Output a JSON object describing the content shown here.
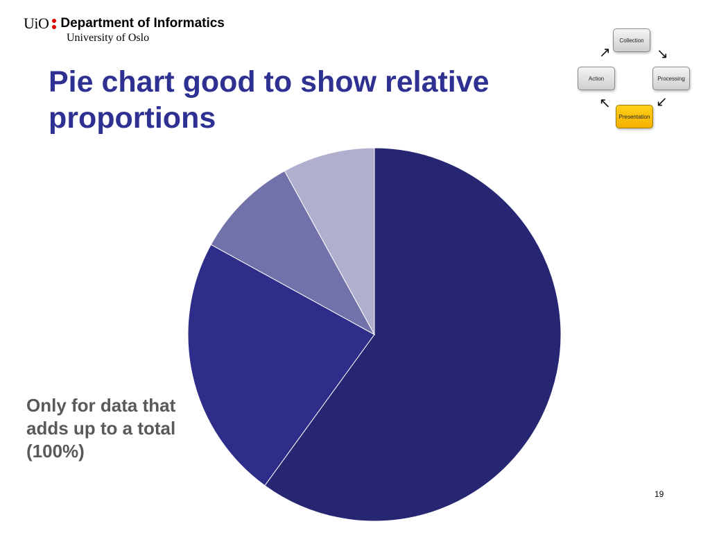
{
  "header": {
    "logo_text": "UiO",
    "department": "Department of Informatics",
    "university": "University of Oslo",
    "logo_dot_color": "#dd0000"
  },
  "slide": {
    "title": "Pie chart good to show relative proportions",
    "caption": "Only for data that adds up to a total (100%)",
    "page_number": "19"
  },
  "cycle_diagram": {
    "nodes": {
      "collection": "Collection",
      "processing": "Processing",
      "presentation": "Presentation",
      "action": "Action"
    },
    "active_node": "presentation",
    "active_color": "#ffc000"
  },
  "chart_data": {
    "type": "pie",
    "title": "",
    "slices": [
      {
        "value": 60,
        "color": "#262673"
      },
      {
        "value": 23,
        "color": "#2e2e8a"
      },
      {
        "value": 9,
        "color": "#7272aa"
      },
      {
        "value": 8,
        "color": "#b0afce"
      }
    ],
    "start_angle_deg": 0,
    "direction": "clockwise",
    "legend": "none",
    "data_labels": "none"
  }
}
